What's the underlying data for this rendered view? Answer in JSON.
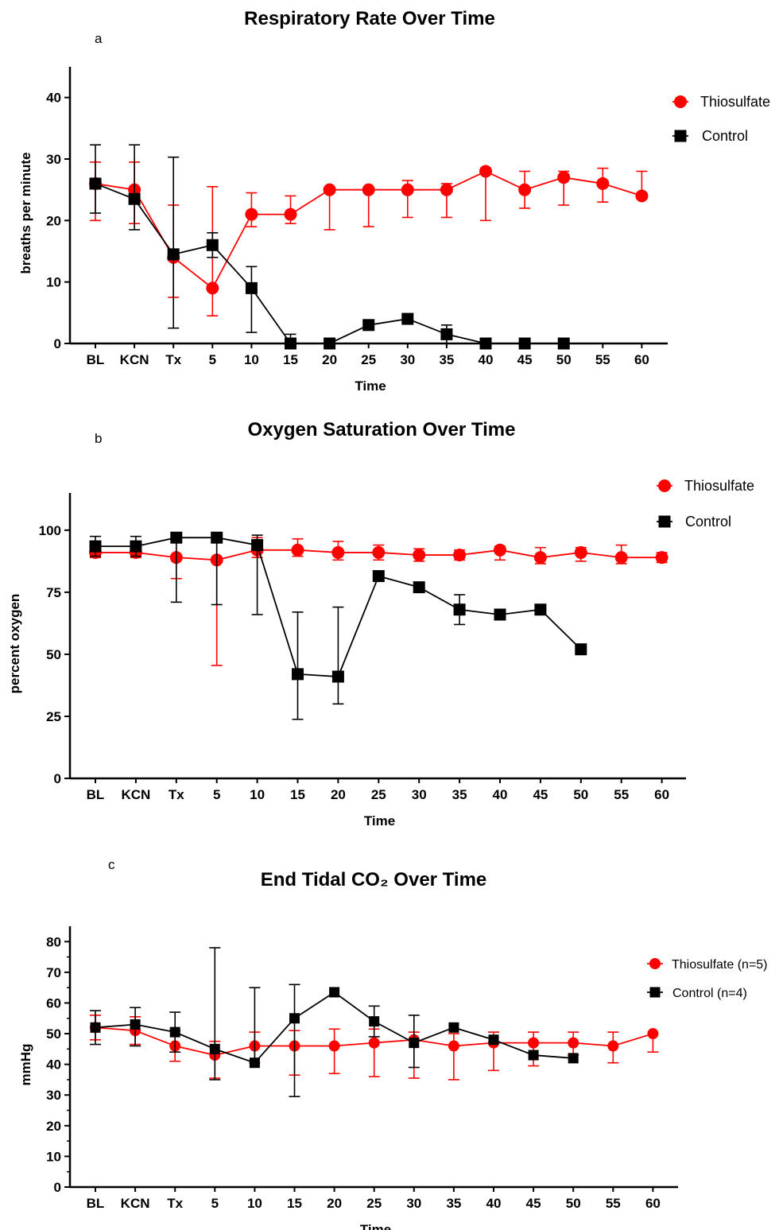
{
  "chart_data": [
    {
      "type": "line",
      "panel_letter": "a",
      "title": "Respiratory Rate Over Time",
      "xlabel": "Time",
      "ylabel": "breaths per minute",
      "categories": [
        "BL",
        "KCN",
        "Tx",
        "5",
        "10",
        "15",
        "20",
        "25",
        "30",
        "35",
        "40",
        "45",
        "50",
        "55",
        "60"
      ],
      "ylim": [
        0,
        45
      ],
      "yticks": [
        0,
        10,
        20,
        30,
        40
      ],
      "legend_position": "top-right",
      "series": [
        {
          "name": "Thiosulfate",
          "color": "#ff0000",
          "marker": "circle",
          "values": [
            26,
            25,
            14,
            9,
            21,
            21,
            25,
            25,
            25,
            25,
            28,
            25,
            27,
            26,
            24
          ],
          "error_high": [
            29.5,
            29.5,
            22.5,
            25.5,
            24.5,
            24,
            25,
            25,
            26.5,
            26,
            28.5,
            28,
            28,
            28.5,
            28
          ],
          "error_low": [
            20,
            19.5,
            7.5,
            4.5,
            19,
            19.5,
            18.5,
            19,
            20.5,
            20.5,
            20,
            22,
            22.5,
            23,
            23.5
          ]
        },
        {
          "name": "Control",
          "color": "#000000",
          "marker": "square",
          "values": [
            26,
            23.5,
            14.5,
            16,
            9,
            0,
            0,
            3,
            4,
            1.5,
            0,
            0,
            0,
            null,
            null
          ],
          "error_high": [
            32.3,
            32.3,
            30.3,
            18,
            12.5,
            1.5,
            0,
            3,
            4.8,
            3,
            0,
            0,
            0,
            null,
            null
          ],
          "error_low": [
            21.2,
            18.5,
            2.5,
            14,
            1.8,
            0,
            0,
            3,
            3.5,
            0,
            0,
            0,
            0,
            null,
            null
          ]
        }
      ]
    },
    {
      "type": "line",
      "panel_letter": "b",
      "title": "Oxygen Saturation Over Time",
      "xlabel": "Time",
      "ylabel": "percent oxygen",
      "categories": [
        "BL",
        "KCN",
        "Tx",
        "5",
        "10",
        "15",
        "20",
        "25",
        "30",
        "35",
        "40",
        "45",
        "50",
        "55",
        "60"
      ],
      "ylim": [
        0,
        115
      ],
      "yticks": [
        0,
        25,
        50,
        75,
        100
      ],
      "legend_position": "top-right",
      "series": [
        {
          "name": "Thiosulfate",
          "color": "#ff0000",
          "marker": "circle",
          "values": [
            91,
            91,
            89,
            88,
            92,
            92,
            91,
            91,
            90,
            90,
            92,
            89,
            91,
            89,
            89
          ],
          "error_high": [
            93,
            93,
            96,
            96,
            97,
            96.5,
            95.5,
            94,
            92.5,
            92,
            93.5,
            93,
            93,
            94,
            91
          ],
          "error_low": [
            89,
            89,
            80.5,
            45.5,
            89,
            89.5,
            88,
            88,
            87.5,
            88,
            88,
            86.5,
            87.5,
            86.5,
            87
          ]
        },
        {
          "name": "Control",
          "color": "#000000",
          "marker": "square",
          "values": [
            93.5,
            93.5,
            97,
            97,
            94,
            42,
            41,
            81.5,
            77,
            68,
            66,
            68,
            52,
            null,
            null
          ],
          "error_high": [
            97.5,
            97.5,
            97,
            97,
            98,
            67,
            69,
            81.5,
            77,
            74,
            66,
            68,
            52,
            null,
            null
          ],
          "error_low": [
            89.5,
            89.5,
            71,
            70,
            66,
            23.8,
            30,
            81.5,
            77,
            62,
            66,
            68,
            52,
            null,
            null
          ]
        }
      ]
    },
    {
      "type": "line",
      "panel_letter": "c",
      "title": "End Tidal CO₂ Over Time",
      "xlabel": "Time",
      "ylabel": "mmHg",
      "categories": [
        "BL",
        "KCN",
        "Tx",
        "5",
        "10",
        "15",
        "20",
        "25",
        "30",
        "35",
        "40",
        "45",
        "50",
        "55",
        "60"
      ],
      "ylim": [
        0,
        85
      ],
      "yticks": [
        0,
        10,
        20,
        30,
        40,
        50,
        60,
        70,
        80
      ],
      "legend_position": "right",
      "series": [
        {
          "name": "Thiosulfate (n=5)",
          "color": "#ff0000",
          "marker": "circle",
          "values": [
            52,
            51,
            46,
            43,
            46,
            46,
            46,
            47,
            48,
            46,
            47,
            47,
            47,
            46,
            50
          ],
          "error_high": [
            56,
            55.5,
            51,
            47.5,
            50.5,
            51,
            51.5,
            51.5,
            50.5,
            50,
            50.5,
            50.5,
            50.5,
            50.5,
            50
          ],
          "error_low": [
            48,
            46.5,
            41,
            35.5,
            40.5,
            36.5,
            37,
            36,
            35.5,
            35,
            38,
            39.5,
            43,
            40.5,
            44
          ]
        },
        {
          "name": "Control (n=4)",
          "color": "#000000",
          "marker": "square",
          "values": [
            52,
            53,
            50.5,
            45,
            40.5,
            55,
            63.5,
            54,
            47,
            52,
            48,
            43,
            42,
            null,
            null
          ],
          "error_high": [
            57.5,
            58.5,
            57,
            78,
            65,
            66,
            63.5,
            59,
            56,
            52,
            48,
            43,
            42,
            null,
            null
          ],
          "error_low": [
            46.5,
            46,
            44,
            35,
            40.5,
            29.5,
            63.5,
            49,
            39,
            52,
            48,
            43,
            42,
            null,
            null
          ]
        }
      ]
    }
  ]
}
